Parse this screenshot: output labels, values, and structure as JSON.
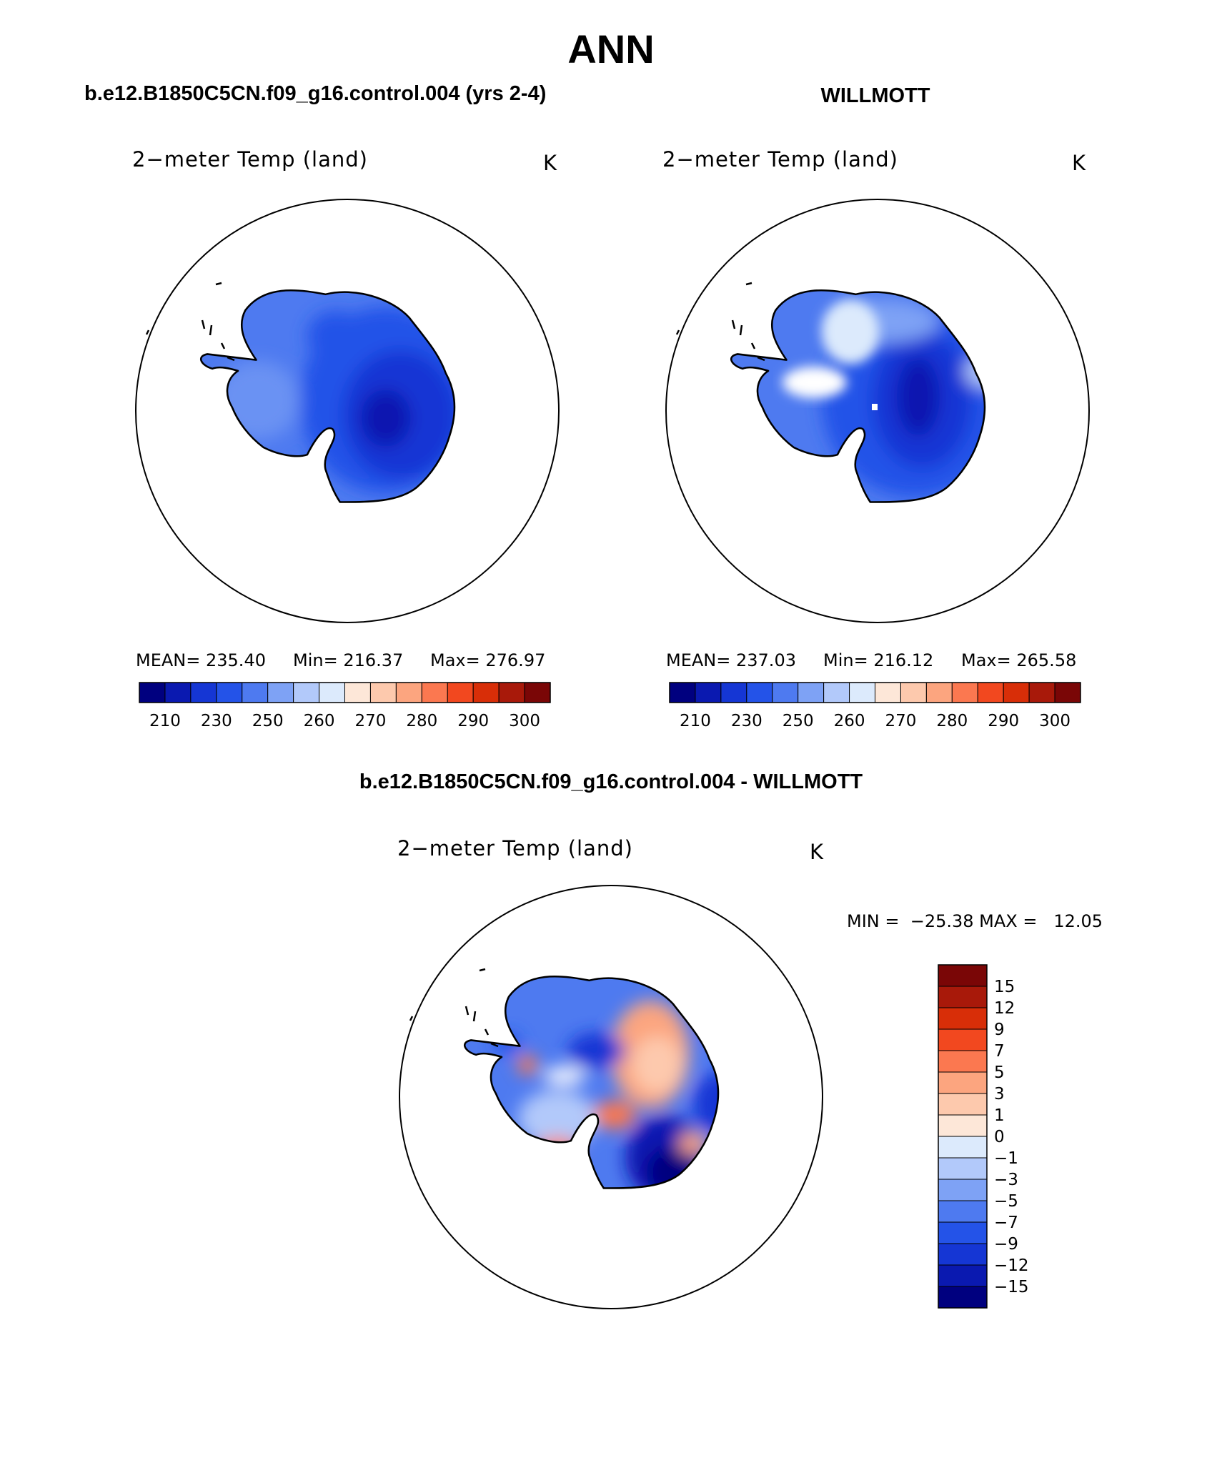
{
  "title": "ANN",
  "panels": [
    {
      "id": "model",
      "header": "b.e12.B1850C5CN.f09_g16.control.004 (yrs 2-4)",
      "variable": "2−meter Temp (land)",
      "units": "K",
      "stats": {
        "mean_label": "MEAN=",
        "mean": "235.40",
        "min_label": "Min=",
        "min": "216.37",
        "max_label": "Max=",
        "max": "276.97"
      }
    },
    {
      "id": "obs",
      "header": "WILLMOTT",
      "variable": "2−meter Temp (land)",
      "units": "K",
      "stats": {
        "mean_label": "MEAN=",
        "mean": "237.03",
        "min_label": "Min=",
        "min": "216.12",
        "max_label": "Max=",
        "max": "265.58"
      }
    },
    {
      "id": "diff",
      "header": "b.e12.B1850C5CN.f09_g16.control.004 - WILLMOTT",
      "variable": "2−meter Temp (land)",
      "units": "K",
      "minmax": "MIN =  −25.38 MAX =   12.05"
    }
  ],
  "colorbar_abs": {
    "colors": [
      "#00007f",
      "#0a19b0",
      "#1536d4",
      "#2453e8",
      "#4e7af0",
      "#7ea2f5",
      "#b2c9fa",
      "#dceafc",
      "#fde7d8",
      "#fdc9ad",
      "#fca57f",
      "#fb7850",
      "#f2481f",
      "#d82e08",
      "#a8190a",
      "#7a0606"
    ],
    "labels": [
      "210",
      "230",
      "250",
      "260",
      "270",
      "280",
      "290",
      "300"
    ]
  },
  "colorbar_diff": {
    "colors": [
      "#7a0606",
      "#a8190a",
      "#d82e08",
      "#f2481f",
      "#fb7850",
      "#fca57f",
      "#fdc9ad",
      "#fde7d8",
      "#dceafc",
      "#b2c9fa",
      "#7ea2f5",
      "#4e7af0",
      "#2453e8",
      "#1536d4",
      "#0a19b0",
      "#00007f"
    ],
    "labels": [
      "15",
      "12",
      "9",
      "7",
      "5",
      "3",
      "1",
      "0",
      "−1",
      "−3",
      "−5",
      "−7",
      "−9",
      "−12",
      "−15"
    ]
  },
  "colors": {
    "ocean": "#ffffff",
    "coast": "#000000"
  }
}
